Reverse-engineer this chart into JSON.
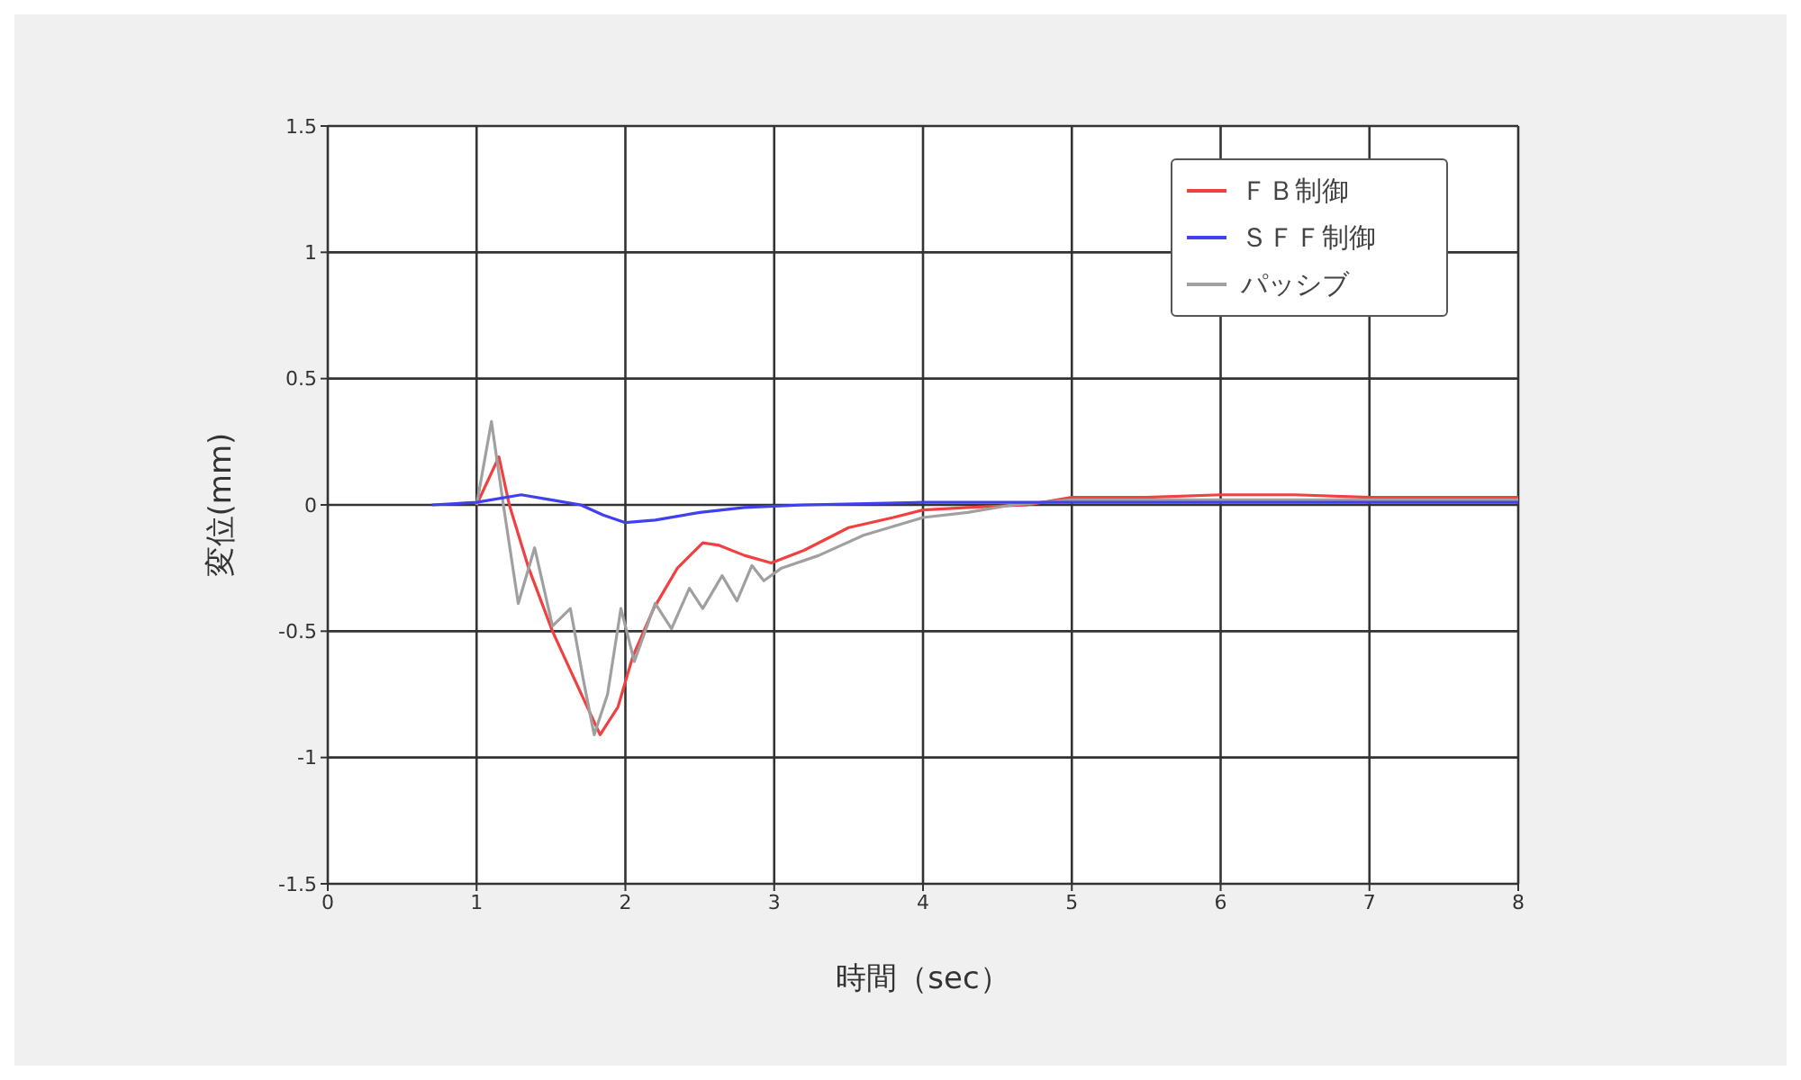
{
  "chart_data": {
    "type": "line",
    "xlabel": "時間（sec）",
    "ylabel": "変位(mm)",
    "xlim": [
      0,
      8
    ],
    "xticks": [
      0,
      1,
      2,
      3,
      4,
      5,
      6,
      7,
      8
    ],
    "ylim": [
      -1.5,
      1.5
    ],
    "yticks": [
      -1.5,
      -1,
      -0.5,
      0,
      0.5,
      1,
      1.5
    ],
    "grid": true,
    "legend": "top right",
    "marker": "none",
    "line_style": "solid",
    "series": [
      {
        "name": "ＦＢ制御",
        "color": "#f04040",
        "x": [
          1.0,
          1.15,
          1.22,
          1.35,
          1.51,
          1.65,
          1.83,
          1.95,
          2.05,
          2.19,
          2.35,
          2.52,
          2.63,
          2.8,
          2.98,
          3.2,
          3.5,
          3.8,
          4.0,
          4.3,
          4.7,
          5.0,
          5.5,
          6.0,
          6.5,
          7.0,
          7.5,
          8.0
        ],
        "values": [
          0.0,
          0.19,
          0.0,
          -0.25,
          -0.5,
          -0.68,
          -0.91,
          -0.8,
          -0.6,
          -0.41,
          -0.25,
          -0.15,
          -0.16,
          -0.2,
          -0.23,
          -0.18,
          -0.09,
          -0.05,
          -0.02,
          -0.01,
          0.0,
          0.03,
          0.03,
          0.04,
          0.04,
          0.03,
          0.03,
          0.03
        ]
      },
      {
        "name": "ＳＦＦ制御",
        "color": "#4040f0",
        "x": [
          0.7,
          1.0,
          1.3,
          1.5,
          1.7,
          1.85,
          2.0,
          2.2,
          2.5,
          2.8,
          3.2,
          4.0,
          4.5,
          5.0,
          6.0,
          7.0,
          8.0
        ],
        "values": [
          0.0,
          0.01,
          0.04,
          0.02,
          0.0,
          -0.04,
          -0.07,
          -0.06,
          -0.03,
          -0.01,
          0.0,
          0.01,
          0.01,
          0.01,
          0.01,
          0.01,
          0.01
        ]
      },
      {
        "name": "パッシブ",
        "color": "#a0a0a0",
        "x": [
          1.0,
          1.1,
          1.18,
          1.28,
          1.39,
          1.51,
          1.63,
          1.72,
          1.79,
          1.88,
          1.97,
          2.06,
          2.2,
          2.31,
          2.43,
          2.52,
          2.65,
          2.75,
          2.85,
          2.93,
          3.05,
          3.3,
          3.6,
          4.0,
          4.3,
          4.6,
          5.0,
          6.0,
          7.0,
          8.0
        ],
        "values": [
          0.0,
          0.33,
          0.0,
          -0.39,
          -0.17,
          -0.48,
          -0.41,
          -0.7,
          -0.91,
          -0.75,
          -0.41,
          -0.62,
          -0.39,
          -0.49,
          -0.33,
          -0.41,
          -0.28,
          -0.38,
          -0.24,
          -0.3,
          -0.25,
          -0.2,
          -0.12,
          -0.05,
          -0.03,
          0.0,
          0.02,
          0.02,
          0.02,
          0.02
        ]
      }
    ]
  }
}
